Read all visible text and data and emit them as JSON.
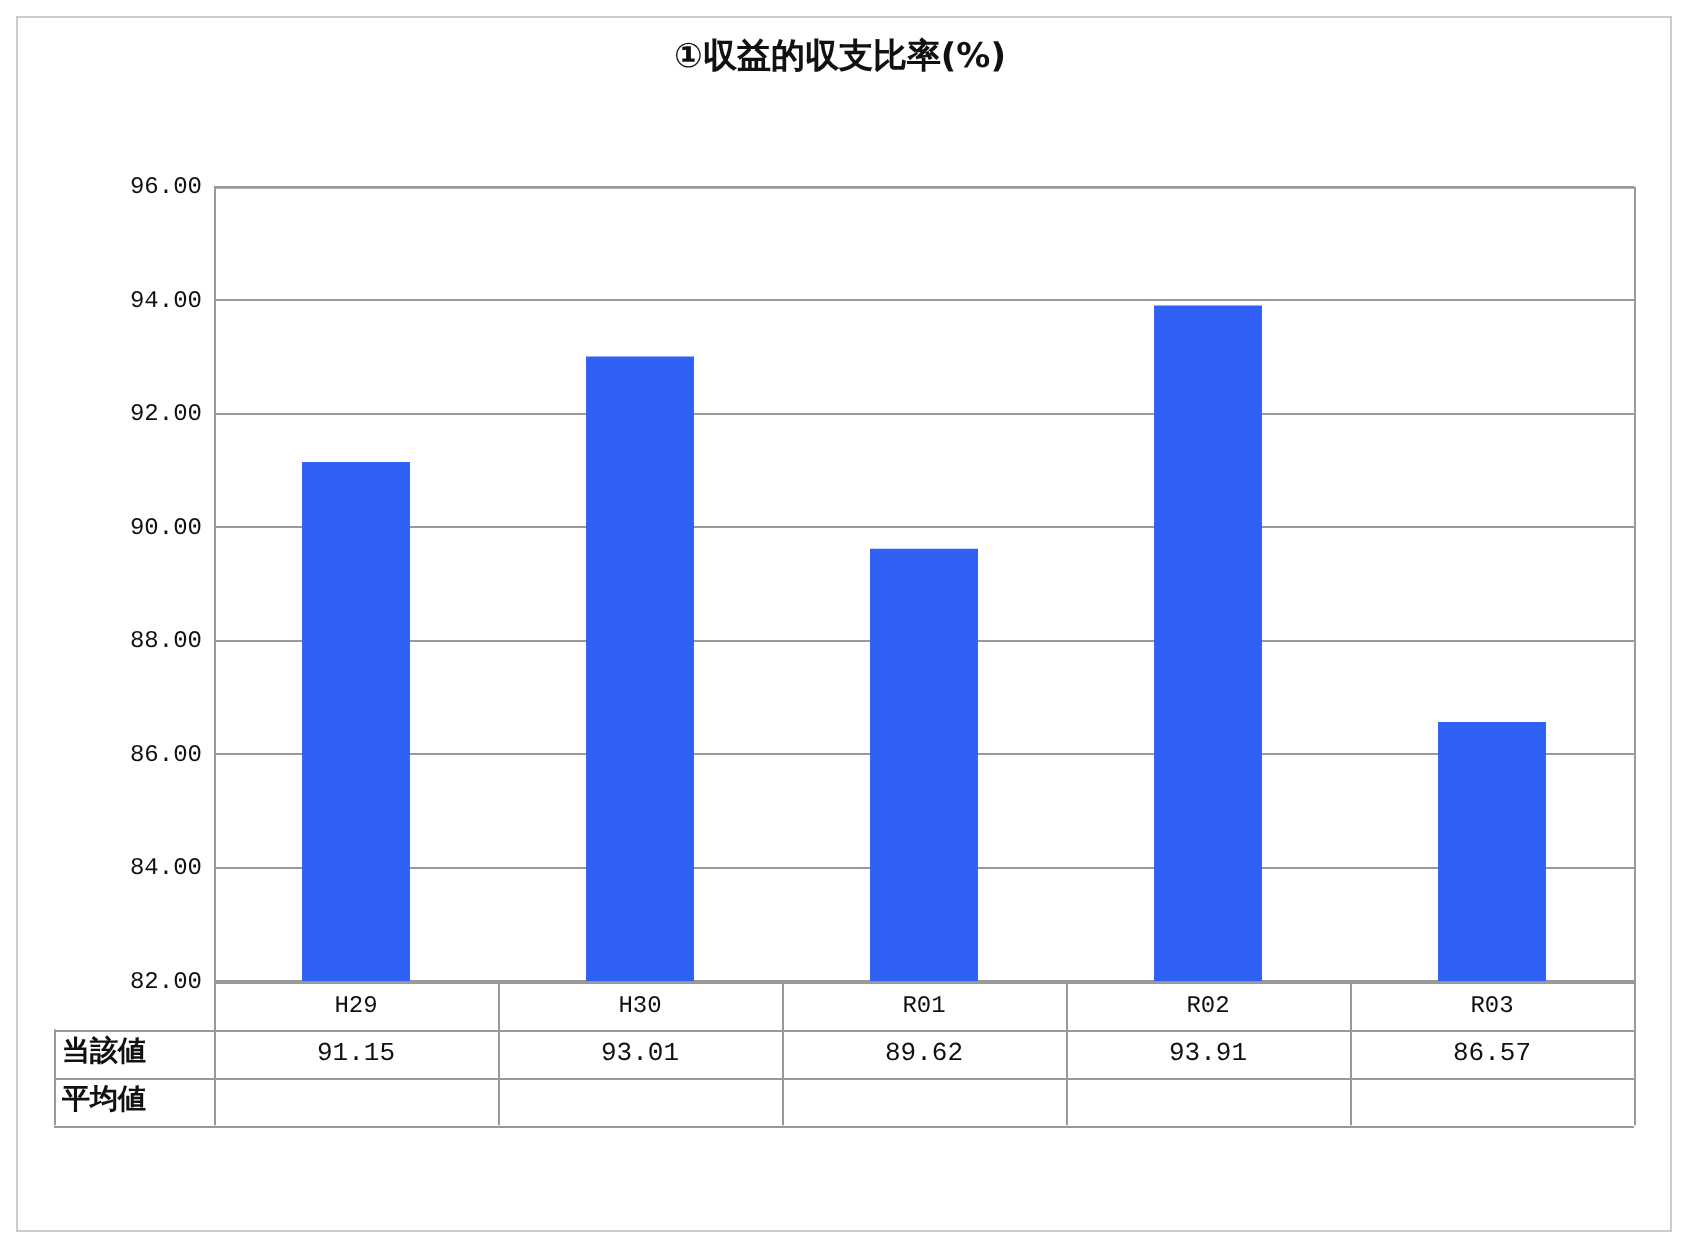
{
  "chart_data": {
    "type": "bar",
    "title": "①収益的収支比率(%)",
    "categories": [
      "H29",
      "H30",
      "R01",
      "R02",
      "R03"
    ],
    "series": [
      {
        "name": "当該値",
        "color": "#2f62f4",
        "values": [
          91.15,
          93.01,
          89.62,
          93.91,
          86.57
        ]
      }
    ],
    "ylim": [
      82,
      96
    ],
    "yticks": [
      {
        "value": 82,
        "label": "82.00"
      },
      {
        "value": 84,
        "label": "84.00"
      },
      {
        "value": 86,
        "label": "86.00"
      },
      {
        "value": 88,
        "label": "88.00"
      },
      {
        "value": 90,
        "label": "90.00"
      },
      {
        "value": 92,
        "label": "92.00"
      },
      {
        "value": 94,
        "label": "94.00"
      },
      {
        "value": 96,
        "label": "96.00"
      }
    ],
    "grid": "y",
    "legend": false,
    "data_labels": true,
    "annotations": [
      "平均値"
    ]
  }
}
